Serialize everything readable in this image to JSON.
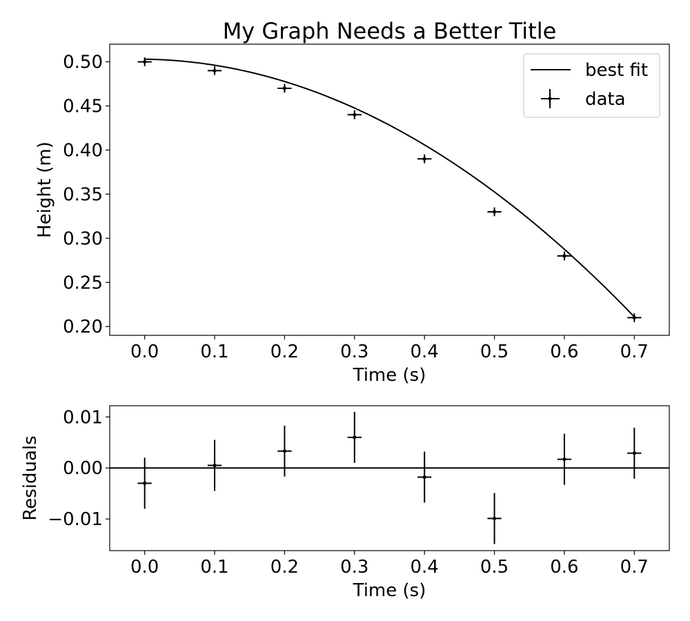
{
  "chart_data": [
    {
      "type": "scatter",
      "title": "My Graph Needs a Better Title",
      "xlabel": "Time (s)",
      "ylabel": "Height (m)",
      "xlim": [
        -0.05,
        0.75
      ],
      "ylim": [
        0.19,
        0.52
      ],
      "xticks": [
        0.0,
        0.1,
        0.2,
        0.3,
        0.4,
        0.5,
        0.6,
        0.7
      ],
      "xtick_labels": [
        "0.0",
        "0.1",
        "0.2",
        "0.3",
        "0.4",
        "0.5",
        "0.6",
        "0.7"
      ],
      "yticks": [
        0.2,
        0.25,
        0.3,
        0.35,
        0.4,
        0.45,
        0.5
      ],
      "ytick_labels": [
        "0.20",
        "0.25",
        "0.30",
        "0.35",
        "0.40",
        "0.45",
        "0.50"
      ],
      "grid": false,
      "legend_position": "top-right",
      "series": [
        {
          "name": "data",
          "kind": "errorbar",
          "x": [
            0.0,
            0.1,
            0.2,
            0.3,
            0.4,
            0.5,
            0.6,
            0.7
          ],
          "y": [
            0.5,
            0.49,
            0.47,
            0.44,
            0.39,
            0.33,
            0.28,
            0.21
          ],
          "xerr": 0.01,
          "yerr": 0.005,
          "color": "#000000"
        },
        {
          "name": "best fit",
          "kind": "line",
          "model": "quadratic",
          "coefficients": {
            "a": -0.5813,
            "b": -0.0103,
            "c": 0.50299
          },
          "x_range": [
            0.0,
            0.7
          ],
          "color": "#000000"
        }
      ]
    },
    {
      "type": "scatter",
      "title": "",
      "xlabel": "Time (s)",
      "ylabel": "Residuals",
      "xlim": [
        -0.05,
        0.75
      ],
      "ylim": [
        -0.0162,
        0.0122
      ],
      "xticks": [
        0.0,
        0.1,
        0.2,
        0.3,
        0.4,
        0.5,
        0.6,
        0.7
      ],
      "xtick_labels": [
        "0.0",
        "0.1",
        "0.2",
        "0.3",
        "0.4",
        "0.5",
        "0.6",
        "0.7"
      ],
      "yticks": [
        -0.01,
        0.0,
        0.01
      ],
      "ytick_labels": [
        "−0.01",
        "0.00",
        "0.01"
      ],
      "grid": false,
      "zero_line": 0.0,
      "series": [
        {
          "kind": "errorbar",
          "x": [
            0.0,
            0.1,
            0.2,
            0.3,
            0.4,
            0.5,
            0.6,
            0.7
          ],
          "y": [
            -0.003,
            0.0005,
            0.0033,
            0.006,
            -0.0018,
            -0.0099,
            0.0017,
            0.0029
          ],
          "xerr": 0.01,
          "yerr": 0.005,
          "color": "#000000"
        }
      ]
    }
  ]
}
